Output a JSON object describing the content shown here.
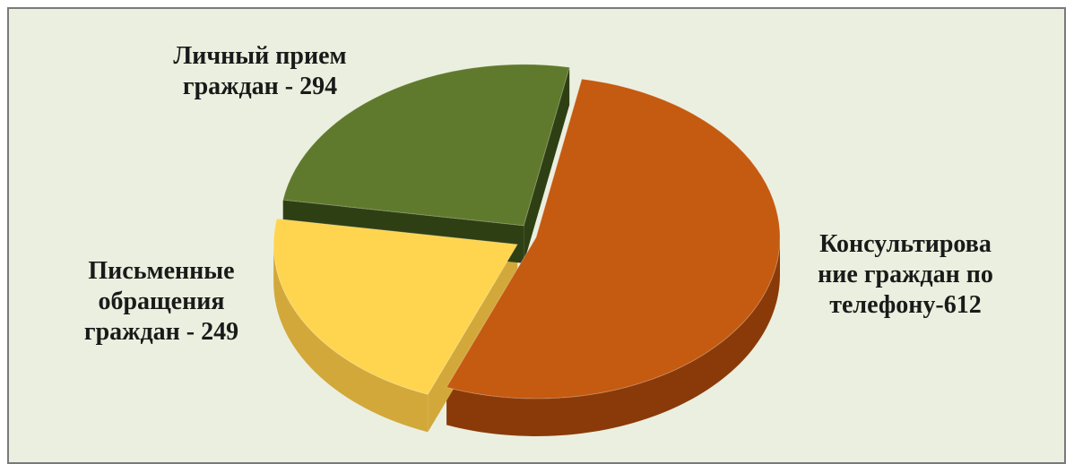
{
  "chart_data": {
    "type": "pie",
    "title": "",
    "slices": [
      {
        "category": "Консультирование граждан по телефону",
        "value": 612,
        "label_lines": [
          "Консультирова",
          "ние граждан по",
          "телефону-612"
        ],
        "color": "#c55a11",
        "side_color": "#8a3a08",
        "exploded": false
      },
      {
        "category": "Письменные обращения граждан",
        "value": 249,
        "label_lines": [
          "Письменные",
          "обращения",
          "граждан - 249"
        ],
        "color": "#ffd54f",
        "side_color": "#d2a83a",
        "exploded": true
      },
      {
        "category": "Личный прием граждан",
        "value": 294,
        "label_lines": [
          "Личный прием",
          "граждан - 294"
        ],
        "color": "#5f7a2c",
        "side_color": "#2f3f14",
        "exploded": true
      }
    ]
  },
  "colors": {
    "background": "#ebefdf",
    "border": "#7a7a7a"
  }
}
